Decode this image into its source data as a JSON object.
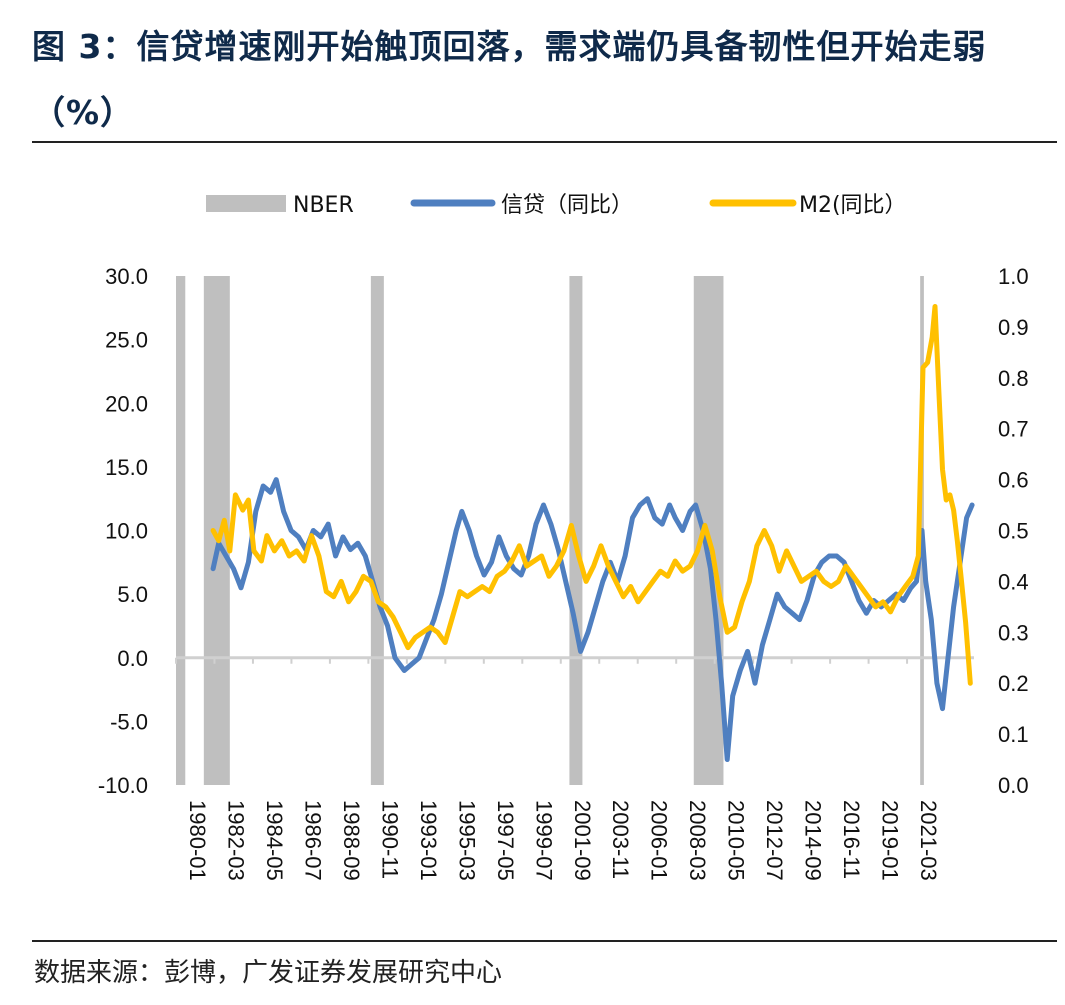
{
  "header": {
    "title": "图 3：信贷增速刚开始触顶回落，需求端仍具备韧性但开始走弱（%）"
  },
  "footer": {
    "source": "数据来源：彭博，广发证券发展研究中心"
  },
  "colors": {
    "credit": "#4f7fc0",
    "m2": "#ffc000",
    "nber": "#bfbfbf",
    "zero_line": "#d0d0d0"
  },
  "chart_data": {
    "type": "line",
    "legend": [
      "NBER",
      "信贷（同比）",
      "M2(同比）"
    ],
    "legend_position": "top",
    "grid": false,
    "x_range": [
      1980.0,
      2023.0
    ],
    "x_tick_labels": [
      "1980-01",
      "1982-03",
      "1984-05",
      "1986-07",
      "1988-09",
      "1990-11",
      "1993-01",
      "1995-03",
      "1997-05",
      "1999-07",
      "2001-09",
      "2003-11",
      "2006-01",
      "2008-03",
      "2010-05",
      "2012-07",
      "2014-09",
      "2016-11",
      "2019-01",
      "2021-03"
    ],
    "y_left": {
      "min": -10,
      "max": 30,
      "ticks": [
        "-10.0",
        "-5.0",
        "0.0",
        "5.0",
        "10.0",
        "15.0",
        "20.0",
        "25.0",
        "30.0"
      ]
    },
    "y_right": {
      "min": 0,
      "max": 1,
      "ticks": [
        "0.0",
        "0.1",
        "0.2",
        "0.3",
        "0.4",
        "0.5",
        "0.6",
        "0.7",
        "0.8",
        "0.9",
        "1.0"
      ]
    },
    "nber_recessions": [
      [
        1980.0,
        1980.5
      ],
      [
        1981.5,
        1982.9
      ],
      [
        1990.5,
        1991.2
      ],
      [
        2001.2,
        2001.9
      ],
      [
        2007.9,
        2009.5
      ],
      [
        2020.1,
        2020.3
      ]
    ],
    "series": [
      {
        "name": "信贷（同比）",
        "axis": "left",
        "points": [
          [
            1982.0,
            7.0
          ],
          [
            1982.3,
            9.0
          ],
          [
            1982.7,
            8.0
          ],
          [
            1983.1,
            7.0
          ],
          [
            1983.5,
            5.5
          ],
          [
            1983.9,
            7.5
          ],
          [
            1984.3,
            11.5
          ],
          [
            1984.7,
            13.5
          ],
          [
            1985.1,
            13.0
          ],
          [
            1985.4,
            14.0
          ],
          [
            1985.8,
            11.5
          ],
          [
            1986.2,
            10.0
          ],
          [
            1986.6,
            9.5
          ],
          [
            1987.0,
            8.5
          ],
          [
            1987.4,
            10.0
          ],
          [
            1987.8,
            9.5
          ],
          [
            1988.2,
            10.5
          ],
          [
            1988.6,
            8.0
          ],
          [
            1989.0,
            9.5
          ],
          [
            1989.4,
            8.5
          ],
          [
            1989.8,
            9.0
          ],
          [
            1990.2,
            8.0
          ],
          [
            1990.6,
            6.0
          ],
          [
            1991.0,
            4.0
          ],
          [
            1991.4,
            2.5
          ],
          [
            1991.8,
            0.0
          ],
          [
            1992.3,
            -1.0
          ],
          [
            1992.7,
            -0.5
          ],
          [
            1993.1,
            0.0
          ],
          [
            1993.5,
            1.5
          ],
          [
            1993.9,
            3.0
          ],
          [
            1994.3,
            5.0
          ],
          [
            1994.7,
            7.5
          ],
          [
            1995.1,
            10.0
          ],
          [
            1995.4,
            11.5
          ],
          [
            1995.8,
            10.0
          ],
          [
            1996.2,
            8.0
          ],
          [
            1996.6,
            6.5
          ],
          [
            1997.0,
            7.5
          ],
          [
            1997.4,
            9.5
          ],
          [
            1997.8,
            8.0
          ],
          [
            1998.2,
            7.0
          ],
          [
            1998.6,
            6.5
          ],
          [
            1999.0,
            8.0
          ],
          [
            1999.4,
            10.5
          ],
          [
            1999.8,
            12.0
          ],
          [
            2000.2,
            10.5
          ],
          [
            2000.6,
            8.5
          ],
          [
            2001.0,
            6.0
          ],
          [
            2001.4,
            3.5
          ],
          [
            2001.8,
            0.5
          ],
          [
            2002.2,
            2.0
          ],
          [
            2002.6,
            4.0
          ],
          [
            2003.0,
            6.0
          ],
          [
            2003.4,
            7.5
          ],
          [
            2003.8,
            6.0
          ],
          [
            2004.2,
            8.0
          ],
          [
            2004.6,
            11.0
          ],
          [
            2005.0,
            12.0
          ],
          [
            2005.4,
            12.5
          ],
          [
            2005.8,
            11.0
          ],
          [
            2006.2,
            10.5
          ],
          [
            2006.6,
            12.0
          ],
          [
            2006.9,
            11.0
          ],
          [
            2007.3,
            10.0
          ],
          [
            2007.7,
            11.5
          ],
          [
            2008.0,
            12.0
          ],
          [
            2008.4,
            10.0
          ],
          [
            2008.8,
            7.0
          ],
          [
            2009.1,
            3.0
          ],
          [
            2009.4,
            -2.0
          ],
          [
            2009.7,
            -8.0
          ],
          [
            2010.0,
            -3.0
          ],
          [
            2010.4,
            -1.0
          ],
          [
            2010.8,
            0.5
          ],
          [
            2011.2,
            -2.0
          ],
          [
            2011.6,
            1.0
          ],
          [
            2012.0,
            3.0
          ],
          [
            2012.4,
            5.0
          ],
          [
            2012.8,
            4.0
          ],
          [
            2013.2,
            3.5
          ],
          [
            2013.6,
            3.0
          ],
          [
            2014.0,
            4.5
          ],
          [
            2014.4,
            6.5
          ],
          [
            2014.8,
            7.5
          ],
          [
            2015.2,
            8.0
          ],
          [
            2015.6,
            8.0
          ],
          [
            2016.0,
            7.5
          ],
          [
            2016.4,
            6.0
          ],
          [
            2016.8,
            4.5
          ],
          [
            2017.2,
            3.5
          ],
          [
            2017.6,
            4.5
          ],
          [
            2018.0,
            4.0
          ],
          [
            2018.4,
            4.5
          ],
          [
            2018.8,
            5.0
          ],
          [
            2019.2,
            4.5
          ],
          [
            2019.6,
            5.5
          ],
          [
            2019.9,
            6.0
          ],
          [
            2020.2,
            10.0
          ],
          [
            2020.4,
            6.0
          ],
          [
            2020.7,
            3.0
          ],
          [
            2021.0,
            -2.0
          ],
          [
            2021.3,
            -4.0
          ],
          [
            2021.6,
            0.0
          ],
          [
            2021.9,
            4.0
          ],
          [
            2022.2,
            7.0
          ],
          [
            2022.6,
            11.0
          ],
          [
            2022.9,
            12.0
          ]
        ]
      },
      {
        "name": "M2(同比）",
        "axis": "right",
        "points": [
          [
            1982.0,
            0.5
          ],
          [
            1982.3,
            0.48
          ],
          [
            1982.6,
            0.52
          ],
          [
            1982.9,
            0.46
          ],
          [
            1983.2,
            0.57
          ],
          [
            1983.6,
            0.54
          ],
          [
            1983.9,
            0.56
          ],
          [
            1984.2,
            0.46
          ],
          [
            1984.6,
            0.44
          ],
          [
            1984.9,
            0.49
          ],
          [
            1985.3,
            0.46
          ],
          [
            1985.7,
            0.48
          ],
          [
            1986.1,
            0.45
          ],
          [
            1986.5,
            0.46
          ],
          [
            1986.9,
            0.44
          ],
          [
            1987.3,
            0.49
          ],
          [
            1987.7,
            0.45
          ],
          [
            1988.1,
            0.38
          ],
          [
            1988.5,
            0.37
          ],
          [
            1988.9,
            0.4
          ],
          [
            1989.3,
            0.36
          ],
          [
            1989.7,
            0.38
          ],
          [
            1990.1,
            0.41
          ],
          [
            1990.5,
            0.4
          ],
          [
            1990.9,
            0.36
          ],
          [
            1991.3,
            0.35
          ],
          [
            1991.7,
            0.33
          ],
          [
            1992.1,
            0.3
          ],
          [
            1992.5,
            0.27
          ],
          [
            1992.9,
            0.29
          ],
          [
            1993.3,
            0.3
          ],
          [
            1993.7,
            0.31
          ],
          [
            1994.1,
            0.3
          ],
          [
            1994.5,
            0.28
          ],
          [
            1994.9,
            0.33
          ],
          [
            1995.3,
            0.38
          ],
          [
            1995.7,
            0.37
          ],
          [
            1996.1,
            0.38
          ],
          [
            1996.5,
            0.39
          ],
          [
            1996.9,
            0.38
          ],
          [
            1997.3,
            0.41
          ],
          [
            1997.7,
            0.42
          ],
          [
            1998.1,
            0.44
          ],
          [
            1998.5,
            0.47
          ],
          [
            1998.9,
            0.43
          ],
          [
            1999.3,
            0.44
          ],
          [
            1999.7,
            0.45
          ],
          [
            2000.1,
            0.41
          ],
          [
            2000.5,
            0.43
          ],
          [
            2000.9,
            0.46
          ],
          [
            2001.3,
            0.51
          ],
          [
            2001.7,
            0.45
          ],
          [
            2002.1,
            0.4
          ],
          [
            2002.5,
            0.43
          ],
          [
            2002.9,
            0.47
          ],
          [
            2003.3,
            0.43
          ],
          [
            2003.7,
            0.4
          ],
          [
            2004.1,
            0.37
          ],
          [
            2004.5,
            0.39
          ],
          [
            2004.9,
            0.36
          ],
          [
            2005.3,
            0.38
          ],
          [
            2005.7,
            0.4
          ],
          [
            2006.1,
            0.42
          ],
          [
            2006.5,
            0.41
          ],
          [
            2006.9,
            0.44
          ],
          [
            2007.3,
            0.42
          ],
          [
            2007.7,
            0.43
          ],
          [
            2008.1,
            0.46
          ],
          [
            2008.5,
            0.51
          ],
          [
            2008.9,
            0.46
          ],
          [
            2009.3,
            0.37
          ],
          [
            2009.7,
            0.3
          ],
          [
            2010.1,
            0.31
          ],
          [
            2010.5,
            0.36
          ],
          [
            2010.9,
            0.4
          ],
          [
            2011.3,
            0.47
          ],
          [
            2011.7,
            0.5
          ],
          [
            2012.1,
            0.47
          ],
          [
            2012.5,
            0.42
          ],
          [
            2012.9,
            0.46
          ],
          [
            2013.3,
            0.43
          ],
          [
            2013.7,
            0.4
          ],
          [
            2014.1,
            0.41
          ],
          [
            2014.5,
            0.42
          ],
          [
            2014.9,
            0.4
          ],
          [
            2015.3,
            0.39
          ],
          [
            2015.7,
            0.4
          ],
          [
            2016.1,
            0.43
          ],
          [
            2016.5,
            0.41
          ],
          [
            2016.9,
            0.39
          ],
          [
            2017.3,
            0.37
          ],
          [
            2017.7,
            0.35
          ],
          [
            2018.1,
            0.36
          ],
          [
            2018.5,
            0.34
          ],
          [
            2018.9,
            0.37
          ],
          [
            2019.3,
            0.39
          ],
          [
            2019.7,
            0.41
          ],
          [
            2020.0,
            0.45
          ],
          [
            2020.25,
            0.82
          ],
          [
            2020.5,
            0.83
          ],
          [
            2020.75,
            0.88
          ],
          [
            2020.9,
            0.94
          ],
          [
            2021.1,
            0.78
          ],
          [
            2021.3,
            0.62
          ],
          [
            2021.5,
            0.56
          ],
          [
            2021.7,
            0.57
          ],
          [
            2021.9,
            0.54
          ],
          [
            2022.1,
            0.48
          ],
          [
            2022.3,
            0.41
          ],
          [
            2022.55,
            0.32
          ],
          [
            2022.8,
            0.2
          ]
        ]
      }
    ]
  }
}
